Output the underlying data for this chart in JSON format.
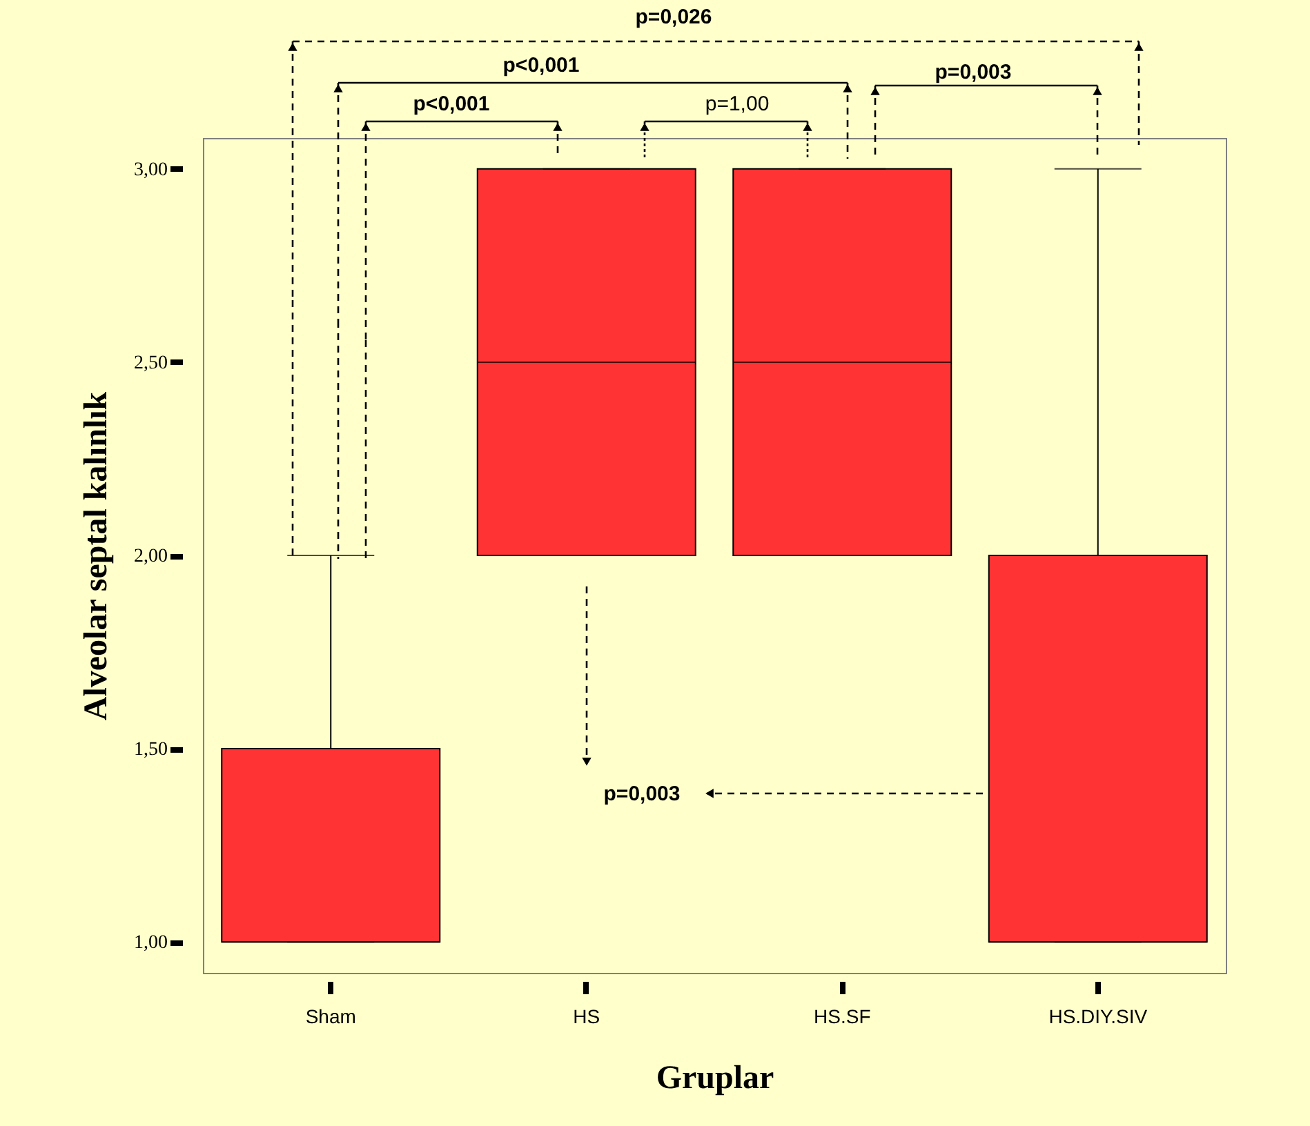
{
  "chart_data": {
    "type": "box",
    "xlabel": "Gruplar",
    "ylabel": "Alveolar septal kalınlık",
    "categories": [
      "Sham",
      "HS",
      "HS.SF",
      "HS.DIY.SIV"
    ],
    "color": "#ff3333",
    "boxes": [
      {
        "low": 1,
        "q1": 1,
        "median": 1,
        "q3": 1.5,
        "high": 2
      },
      {
        "low": 2,
        "q1": 2,
        "median": 2.5,
        "q3": 3,
        "high": 3
      },
      {
        "low": 2,
        "q1": 2,
        "median": 2.5,
        "q3": 3,
        "high": 3
      },
      {
        "low": 1,
        "q1": 1,
        "median": 1,
        "q3": 2,
        "high": 3
      }
    ],
    "ylim": [
      0.92,
      3.08
    ],
    "yticks": [
      {
        "value": 1,
        "label": "1,00"
      },
      {
        "value": 1.5,
        "label": "1,50"
      },
      {
        "value": 2,
        "label": "2,00"
      },
      {
        "value": 2.5,
        "label": "2,50"
      },
      {
        "value": 3,
        "label": "3,00"
      }
    ],
    "grid": false,
    "annotations": [
      "p=0,026",
      "p<0,001",
      "p<0,001",
      "p=1,00",
      "p=0,003",
      "p=0,003"
    ]
  }
}
